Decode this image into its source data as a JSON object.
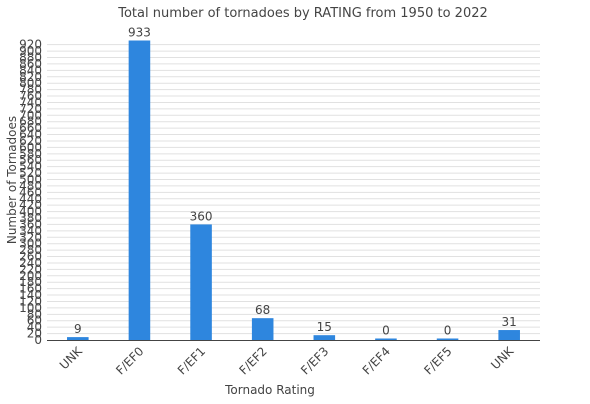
{
  "chart_data": {
    "type": "bar",
    "title": "Total number of tornadoes by RATING from 1950 to 2022",
    "xlabel": "Tornado Rating",
    "ylabel": "Number of Tornadoes",
    "categories": [
      "UNK",
      "F/EF0",
      "F/EF1",
      "F/EF2",
      "F/EF3",
      "F/EF4",
      "F/EF5",
      "UNK"
    ],
    "values": [
      9,
      933,
      360,
      68,
      15,
      0,
      0,
      31
    ],
    "ylim": [
      0,
      933
    ],
    "yticks": [
      0,
      20,
      40,
      60,
      80,
      100,
      120,
      140,
      160,
      180,
      200,
      220,
      240,
      260,
      280,
      300,
      320,
      340,
      360,
      380,
      400,
      420,
      440,
      460,
      480,
      500,
      520,
      540,
      560,
      580,
      600,
      620,
      640,
      660,
      680,
      700,
      720,
      740,
      760,
      780,
      800,
      820,
      840,
      860,
      880,
      900,
      920
    ],
    "bar_color": "#2e86de",
    "grid": true,
    "legend": "none"
  }
}
